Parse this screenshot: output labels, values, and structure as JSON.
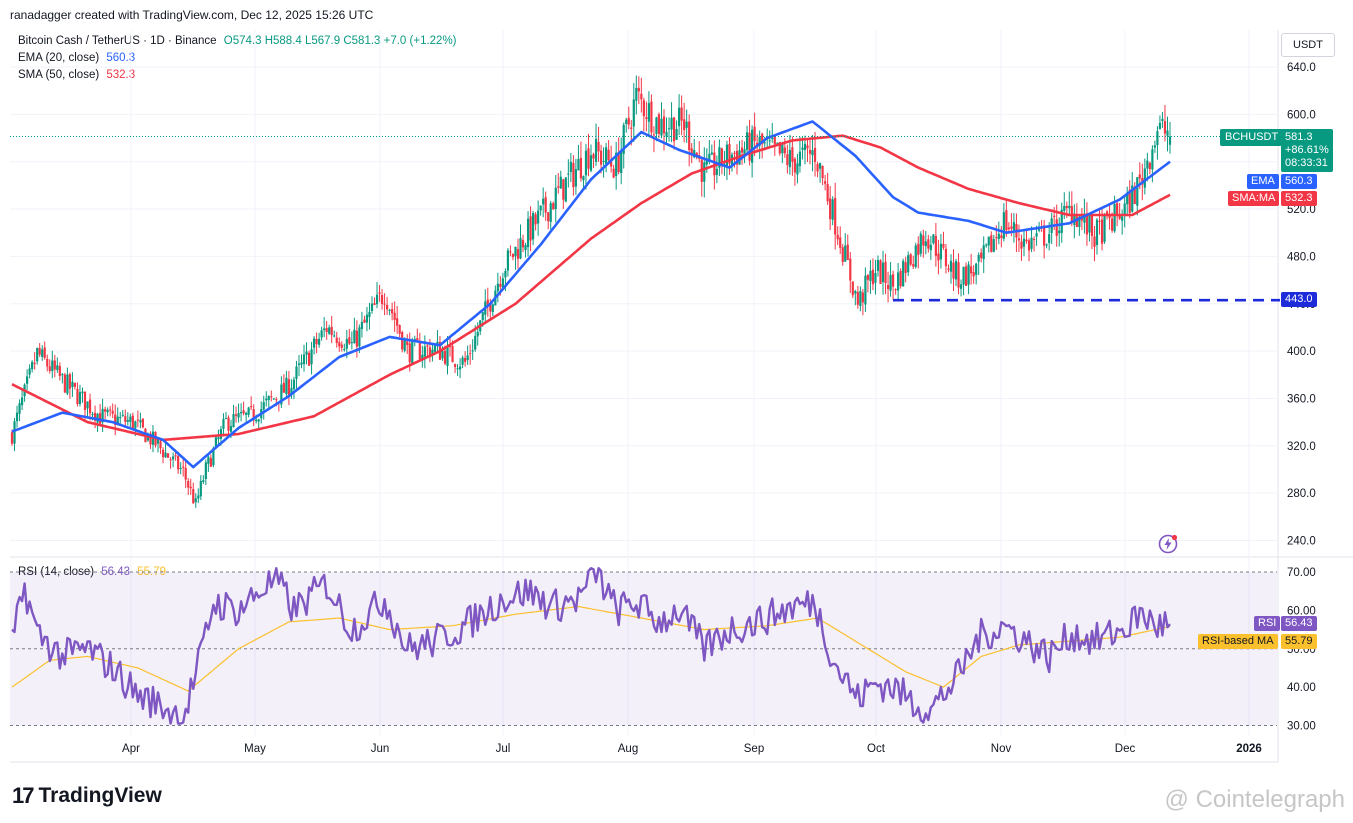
{
  "header": {
    "credit": "ranadagger created with TradingView.com, Dec 12, 2025 15:26 UTC"
  },
  "legend": {
    "symbol": "Bitcoin Cash / TetherUS · 1D · Binance",
    "ohlc": "O574.3 H588.4 L567.9 C581.3 +7.0 (+1.22%)",
    "ema_label": "EMA (20, close)",
    "ema_value": "560.3",
    "sma_label": "SMA (50, close)",
    "sma_value": "532.3",
    "rsi_label": "RSI (14, close)",
    "rsi_value": "56.43",
    "rsi_ma_value": "55.79"
  },
  "axis": {
    "unit": "USDT"
  },
  "tags": {
    "price_symbol": "BCHUSDT",
    "price_value": "581.3",
    "price_change": "+86.61%",
    "price_timer": "08:33:31",
    "ema": "EMA",
    "ema_value": "560.3",
    "sma": "SMA:MA",
    "sma_value": "532.3",
    "support_value": "443.0",
    "rsi": "RSI",
    "rsi_value": "56.43",
    "rsi_ma": "RSI-based MA",
    "rsi_ma_value": "55.79"
  },
  "colors": {
    "up": "#089981",
    "down": "#f23645",
    "ema": "#2962ff",
    "sma": "#f23645",
    "rsi": "#7e57c2",
    "rsi_ma": "#fbc02d",
    "support": "#1e2bd8"
  },
  "footer": {
    "brand": "TradingView",
    "watermark": "@ Cointelegraph"
  },
  "chart_data": [
    {
      "type": "candlestick",
      "title": "Bitcoin Cash / TetherUS · 1D · Binance",
      "y_ticks": [
        "640.0",
        "600.0",
        "560.0",
        "520.0",
        "480.0",
        "440.0",
        "400.0",
        "360.0",
        "320.0",
        "280.0",
        "240.0"
      ],
      "x_ticks": [
        "Apr",
        "May",
        "Jun",
        "Jul",
        "Aug",
        "Sep",
        "Oct",
        "Nov",
        "Dec",
        "2026"
      ],
      "ylim": [
        226,
        660
      ],
      "last_close": 581.3,
      "support_level": 443.0,
      "price_path": [
        [
          0,
          330
        ],
        [
          10,
          398
        ],
        [
          20,
          375
        ],
        [
          35,
          345
        ],
        [
          48,
          340
        ],
        [
          58,
          320
        ],
        [
          68,
          298
        ],
        [
          73,
          270
        ],
        [
          77,
          300
        ],
        [
          85,
          340
        ],
        [
          95,
          345
        ],
        [
          110,
          370
        ],
        [
          125,
          420
        ],
        [
          135,
          405
        ],
        [
          148,
          450
        ],
        [
          157,
          400
        ],
        [
          168,
          402
        ],
        [
          180,
          390
        ],
        [
          195,
          470
        ],
        [
          205,
          500
        ],
        [
          220,
          542
        ],
        [
          230,
          570
        ],
        [
          240,
          556
        ],
        [
          248,
          615
        ],
        [
          257,
          592
        ],
        [
          267,
          592
        ],
        [
          275,
          550
        ],
        [
          285,
          565
        ],
        [
          296,
          575
        ],
        [
          310,
          560
        ],
        [
          319,
          568
        ],
        [
          327,
          510
        ],
        [
          336,
          440
        ],
        [
          343,
          470
        ],
        [
          350,
          455
        ],
        [
          363,
          500
        ],
        [
          376,
          462
        ],
        [
          384,
          470
        ],
        [
          394,
          510
        ],
        [
          403,
          490
        ],
        [
          412,
          500
        ],
        [
          421,
          520
        ],
        [
          430,
          497
        ],
        [
          442,
          520
        ],
        [
          448,
          542
        ],
        [
          455,
          587
        ],
        [
          460,
          585
        ]
      ],
      "series": [
        {
          "name": "EMA (20, close)",
          "points": [
            [
              0,
              332
            ],
            [
              20,
              348
            ],
            [
              40,
              340
            ],
            [
              60,
              325
            ],
            [
              72,
              302
            ],
            [
              90,
              335
            ],
            [
              110,
              362
            ],
            [
              130,
              395
            ],
            [
              150,
              412
            ],
            [
              170,
              405
            ],
            [
              190,
              440
            ],
            [
              210,
              490
            ],
            [
              230,
              545
            ],
            [
              250,
              585
            ],
            [
              265,
              570
            ],
            [
              285,
              555
            ],
            [
              300,
              580
            ],
            [
              318,
              594
            ],
            [
              335,
              565
            ],
            [
              350,
              530
            ],
            [
              360,
              517
            ],
            [
              380,
              510
            ],
            [
              395,
              500
            ],
            [
              420,
              508
            ],
            [
              440,
              528
            ],
            [
              460,
              560
            ]
          ]
        },
        {
          "name": "SMA (50, close)",
          "points": [
            [
              0,
              372
            ],
            [
              30,
              340
            ],
            [
              60,
              325
            ],
            [
              90,
              330
            ],
            [
              120,
              345
            ],
            [
              150,
              380
            ],
            [
              170,
              400
            ],
            [
              200,
              440
            ],
            [
              230,
              495
            ],
            [
              250,
              525
            ],
            [
              270,
              550
            ],
            [
              290,
              565
            ],
            [
              310,
              578
            ],
            [
              330,
              582
            ],
            [
              345,
              572
            ],
            [
              360,
              555
            ],
            [
              380,
              537
            ],
            [
              400,
              525
            ],
            [
              420,
              515
            ],
            [
              445,
              515
            ],
            [
              460,
              532
            ]
          ]
        }
      ]
    },
    {
      "type": "line",
      "title": "RSI (14, close)",
      "y_ticks": [
        "70.00",
        "60.00",
        "50.00",
        "40.00",
        "30.00"
      ],
      "ylim": [
        28,
        74
      ],
      "band": [
        30,
        70
      ],
      "series": [
        {
          "name": "RSI",
          "points": [
            [
              0,
              51
            ],
            [
              5,
              66
            ],
            [
              10,
              54
            ],
            [
              20,
              48
            ],
            [
              30,
              50
            ],
            [
              40,
              45
            ],
            [
              50,
              38
            ],
            [
              60,
              35
            ],
            [
              68,
              32
            ],
            [
              75,
              48
            ],
            [
              80,
              62
            ],
            [
              90,
              60
            ],
            [
              100,
              66
            ],
            [
              105,
              68
            ],
            [
              112,
              60
            ],
            [
              125,
              67
            ],
            [
              135,
              55
            ],
            [
              148,
              63
            ],
            [
              157,
              50
            ],
            [
              168,
              52
            ],
            [
              180,
              56
            ],
            [
              195,
              63
            ],
            [
              205,
              65
            ],
            [
              215,
              61
            ],
            [
              225,
              63
            ],
            [
              232,
              70
            ],
            [
              240,
              60
            ],
            [
              248,
              62
            ],
            [
              257,
              57
            ],
            [
              265,
              60
            ],
            [
              275,
              50
            ],
            [
              285,
              55
            ],
            [
              296,
              57
            ],
            [
              310,
              61
            ],
            [
              319,
              62
            ],
            [
              327,
              46
            ],
            [
              336,
              37
            ],
            [
              343,
              41
            ],
            [
              350,
              40
            ],
            [
              358,
              36
            ],
            [
              365,
              34
            ],
            [
              376,
              43
            ],
            [
              384,
              53
            ],
            [
              394,
              56
            ],
            [
              403,
              52
            ],
            [
              412,
              48
            ],
            [
              421,
              54
            ],
            [
              430,
              52
            ],
            [
              442,
              55
            ],
            [
              448,
              59
            ],
            [
              455,
              56
            ],
            [
              460,
              56.4
            ]
          ]
        },
        {
          "name": "RSI-based MA",
          "points": [
            [
              0,
              40
            ],
            [
              15,
              47
            ],
            [
              30,
              48
            ],
            [
              50,
              45
            ],
            [
              70,
              39
            ],
            [
              90,
              50
            ],
            [
              110,
              57
            ],
            [
              130,
              58
            ],
            [
              150,
              55
            ],
            [
              175,
              56
            ],
            [
              200,
              59
            ],
            [
              225,
              61
            ],
            [
              250,
              58
            ],
            [
              275,
              55
            ],
            [
              300,
              56
            ],
            [
              320,
              58
            ],
            [
              340,
              50
            ],
            [
              355,
              44
            ],
            [
              370,
              40
            ],
            [
              385,
              48
            ],
            [
              400,
              51
            ],
            [
              420,
              52
            ],
            [
              440,
              53
            ],
            [
              460,
              55.8
            ]
          ]
        }
      ]
    }
  ]
}
